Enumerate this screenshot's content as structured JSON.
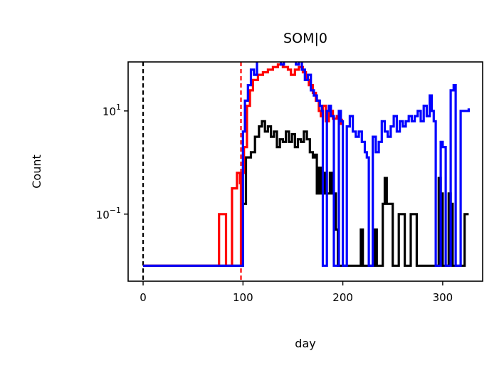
{
  "chart_data": {
    "type": "line",
    "title": "SOM|0",
    "xlabel": "day",
    "ylabel": "Count",
    "xlim": [
      -15,
      340
    ],
    "ylim_log10": [
      -2.3,
      1.95
    ],
    "yscale": "log",
    "grid": false,
    "x_ticks": [
      {
        "value": 0,
        "label": "0"
      },
      {
        "value": 100,
        "label": "100"
      },
      {
        "value": 200,
        "label": "200"
      },
      {
        "value": 300,
        "label": "300"
      }
    ],
    "y_ticks": [
      {
        "log10": 1,
        "base": "10",
        "exp": "1"
      },
      {
        "log10": -1,
        "base": "10",
        "exp": "−1"
      }
    ],
    "vlines": [
      {
        "x": 0,
        "color": "#000000",
        "style": "dashed"
      },
      {
        "x": 98,
        "color": "#ff0000",
        "style": "dashed"
      }
    ],
    "series": [
      {
        "color": "#000000",
        "points": [
          [
            0,
            -2
          ],
          [
            99,
            -2
          ],
          [
            100,
            -0.8
          ],
          [
            103,
            0.1
          ],
          [
            108,
            0.2
          ],
          [
            112,
            0.5
          ],
          [
            116,
            0.7
          ],
          [
            119,
            0.8
          ],
          [
            122,
            0.6
          ],
          [
            125,
            0.7
          ],
          [
            128,
            0.5
          ],
          [
            131,
            0.6
          ],
          [
            134,
            0.3
          ],
          [
            137,
            0.45
          ],
          [
            140,
            0.4
          ],
          [
            143,
            0.6
          ],
          [
            146,
            0.4
          ],
          [
            149,
            0.55
          ],
          [
            152,
            0.3
          ],
          [
            155,
            0.45
          ],
          [
            158,
            0.4
          ],
          [
            161,
            0.6
          ],
          [
            164,
            0.45
          ],
          [
            167,
            0.2
          ],
          [
            170,
            0.1
          ],
          [
            172,
            0.15
          ],
          [
            174,
            -0.6
          ],
          [
            176,
            -0.1
          ],
          [
            178,
            -0.6
          ],
          [
            181,
            -0.2
          ],
          [
            183,
            -0.6
          ],
          [
            187,
            -0.2
          ],
          [
            189,
            -0.6
          ],
          [
            191,
            -0.6
          ],
          [
            193,
            -1.3
          ],
          [
            195,
            -2
          ],
          [
            215,
            -2
          ],
          [
            218,
            -1.3
          ],
          [
            220,
            -2
          ],
          [
            230,
            -2
          ],
          [
            232,
            -1.3
          ],
          [
            234,
            -2
          ],
          [
            238,
            -2
          ],
          [
            240,
            -0.8
          ],
          [
            242,
            -0.3
          ],
          [
            244,
            -0.8
          ],
          [
            248,
            -0.8
          ],
          [
            250,
            -2
          ],
          [
            254,
            -2
          ],
          [
            256,
            -1
          ],
          [
            260,
            -1
          ],
          [
            262,
            -2
          ],
          [
            266,
            -2
          ],
          [
            268,
            -1
          ],
          [
            272,
            -1
          ],
          [
            274,
            -2
          ],
          [
            294,
            -2
          ],
          [
            296,
            -0.3
          ],
          [
            298,
            -0.6
          ],
          [
            300,
            -2
          ],
          [
            304,
            -2
          ],
          [
            306,
            -0.6
          ],
          [
            308,
            -0.8
          ],
          [
            310,
            -2
          ],
          [
            320,
            -2
          ],
          [
            322,
            -1
          ],
          [
            326,
            -1
          ]
        ]
      },
      {
        "color": "#ff0000",
        "points": [
          [
            0,
            -2
          ],
          [
            74,
            -2
          ],
          [
            76,
            -1
          ],
          [
            81,
            -1
          ],
          [
            83,
            -2
          ],
          [
            87,
            -2
          ],
          [
            89,
            -0.5
          ],
          [
            92,
            -0.5
          ],
          [
            94,
            -0.2
          ],
          [
            97,
            -0.4
          ],
          [
            98,
            -2
          ],
          [
            99,
            -0.2
          ],
          [
            101,
            0.3
          ],
          [
            104,
            1.1
          ],
          [
            107,
            1.4
          ],
          [
            110,
            1.6
          ],
          [
            115,
            1.7
          ],
          [
            120,
            1.75
          ],
          [
            125,
            1.8
          ],
          [
            130,
            1.85
          ],
          [
            135,
            1.9
          ],
          [
            140,
            1.85
          ],
          [
            145,
            1.8
          ],
          [
            148,
            1.7
          ],
          [
            152,
            1.8
          ],
          [
            156,
            1.85
          ],
          [
            160,
            1.75
          ],
          [
            163,
            1.6
          ],
          [
            166,
            1.5
          ],
          [
            170,
            1.35
          ],
          [
            173,
            1.2
          ],
          [
            176,
            1.0
          ],
          [
            178,
            0.9
          ],
          [
            180,
            1.1
          ],
          [
            183,
            0.8
          ],
          [
            186,
            1.0
          ],
          [
            190,
            0.85
          ],
          [
            194,
            0.9
          ],
          [
            197,
            0.75
          ],
          [
            199,
            0.85
          ]
        ]
      },
      {
        "color": "#0000ff",
        "points": [
          [
            0,
            -2
          ],
          [
            99,
            -2
          ],
          [
            100,
            0.6
          ],
          [
            102,
            1.2
          ],
          [
            105,
            1.5
          ],
          [
            108,
            1.8
          ],
          [
            111,
            1.7
          ],
          [
            114,
            2.0
          ],
          [
            117,
            2.3
          ],
          [
            120,
            2.35
          ],
          [
            123,
            2.25
          ],
          [
            126,
            2.0
          ],
          [
            129,
            2.1
          ],
          [
            132,
            2.2
          ],
          [
            135,
            2.0
          ],
          [
            138,
            1.9
          ],
          [
            141,
            2.1
          ],
          [
            144,
            2.0
          ],
          [
            147,
            2.2
          ],
          [
            150,
            2.1
          ],
          [
            153,
            1.9
          ],
          [
            156,
            2.0
          ],
          [
            159,
            1.8
          ],
          [
            162,
            1.6
          ],
          [
            165,
            1.7
          ],
          [
            168,
            1.4
          ],
          [
            171,
            1.3
          ],
          [
            174,
            1.2
          ],
          [
            177,
            1.1
          ],
          [
            179,
            1.0
          ],
          [
            180,
            -2
          ],
          [
            182,
            -2
          ],
          [
            184,
            1.0
          ],
          [
            186,
            1.1
          ],
          [
            188,
            0.9
          ],
          [
            191,
            -2
          ],
          [
            194,
            -2
          ],
          [
            196,
            1.0
          ],
          [
            198,
            0.8
          ],
          [
            200,
            -2
          ],
          [
            202,
            -2
          ],
          [
            204,
            0.7
          ],
          [
            207,
            0.9
          ],
          [
            210,
            0.6
          ],
          [
            213,
            0.5
          ],
          [
            216,
            0.6
          ],
          [
            219,
            0.4
          ],
          [
            222,
            0.2
          ],
          [
            224,
            0.1
          ],
          [
            226,
            -2
          ],
          [
            228,
            -2
          ],
          [
            230,
            0.5
          ],
          [
            233,
            0.2
          ],
          [
            236,
            0.4
          ],
          [
            239,
            0.8
          ],
          [
            242,
            0.6
          ],
          [
            245,
            0.5
          ],
          [
            248,
            0.7
          ],
          [
            251,
            0.9
          ],
          [
            254,
            0.6
          ],
          [
            257,
            0.8
          ],
          [
            260,
            0.7
          ],
          [
            263,
            0.8
          ],
          [
            266,
            0.9
          ],
          [
            269,
            0.8
          ],
          [
            272,
            0.9
          ],
          [
            275,
            1.0
          ],
          [
            278,
            0.8
          ],
          [
            281,
            1.1
          ],
          [
            284,
            0.9
          ],
          [
            287,
            1.3
          ],
          [
            289,
            1.0
          ],
          [
            291,
            0.8
          ],
          [
            293,
            -2
          ],
          [
            296,
            -2
          ],
          [
            298,
            0.4
          ],
          [
            300,
            0.3
          ],
          [
            303,
            -2
          ],
          [
            306,
            -2
          ],
          [
            308,
            1.4
          ],
          [
            311,
            1.5
          ],
          [
            313,
            -2
          ],
          [
            316,
            -2
          ],
          [
            318,
            1.0
          ],
          [
            322,
            1.0
          ],
          [
            326,
            1.05
          ]
        ]
      }
    ]
  }
}
